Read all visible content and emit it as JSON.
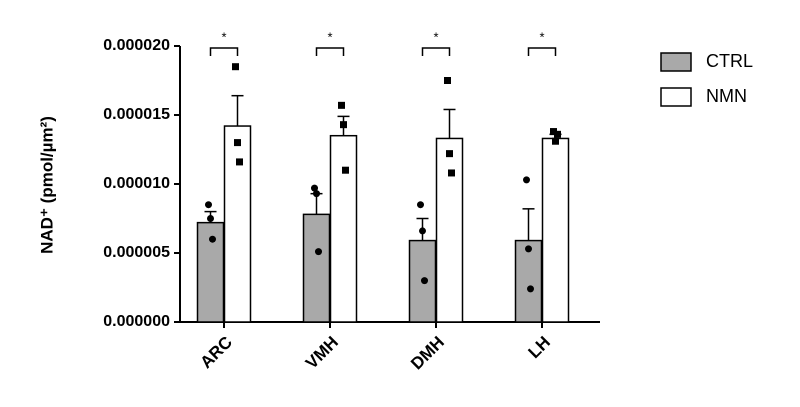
{
  "chart_data": {
    "type": "bar",
    "y_label": "NAD⁺ (pmol/µm²)",
    "categories": [
      "ARC",
      "VMH",
      "DMH",
      "LH"
    ],
    "annotations": [
      "*",
      "*",
      "*",
      "*"
    ],
    "series": [
      {
        "name": "CTRL",
        "color": "#a9a9a9",
        "marker": "circle",
        "values": [
          7.2e-06,
          7.8e-06,
          5.9e-06,
          5.9e-06
        ],
        "errors": [
          8e-07,
          1.5e-06,
          1.6e-06,
          2.3e-06
        ],
        "points": [
          [
            8.5e-06,
            7.5e-06,
            6e-06
          ],
          [
            9.7e-06,
            9.3e-06,
            5.1e-06
          ],
          [
            8.5e-06,
            6.6e-06,
            3e-06
          ],
          [
            1.03e-05,
            5.3e-06,
            2.4e-06
          ]
        ]
      },
      {
        "name": "NMN",
        "color": "#ffffff",
        "marker": "square",
        "values": [
          1.42e-05,
          1.35e-05,
          1.33e-05,
          1.33e-05
        ],
        "errors": [
          2.2e-06,
          1.4e-06,
          2.1e-06,
          3e-07
        ],
        "points": [
          [
            1.85e-05,
            1.3e-05,
            1.16e-05
          ],
          [
            1.57e-05,
            1.43e-05,
            1.1e-05
          ],
          [
            1.75e-05,
            1.22e-05,
            1.08e-05
          ],
          [
            1.38e-05,
            1.31e-05,
            1.36e-05
          ]
        ]
      }
    ],
    "ylim": [
      0,
      2e-05
    ],
    "yticks": [
      {
        "value": 0,
        "label": "0.000000"
      },
      {
        "value": 5e-06,
        "label": "0.000005"
      },
      {
        "value": 1e-05,
        "label": "0.000010"
      },
      {
        "value": 1.5e-05,
        "label": "0.000015"
      },
      {
        "value": 2e-05,
        "label": "0.000020"
      }
    ],
    "legend": "top-right"
  }
}
